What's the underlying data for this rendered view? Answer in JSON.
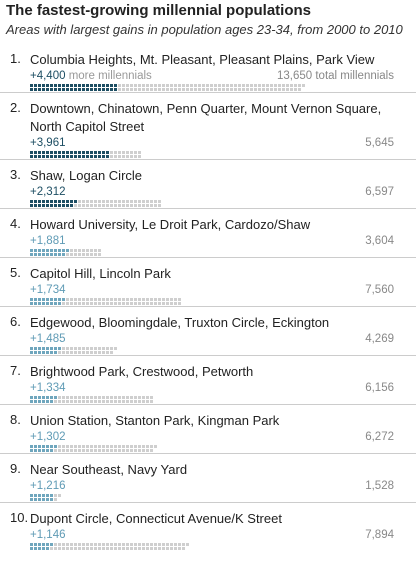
{
  "title": "The fastest-growing millennial populations",
  "subtitle": "Areas with largest gains in population ages 23-34, from 2000 to 2010",
  "first_row_labels": {
    "gain_suffix": "more millennials",
    "total_suffix": "total millennials"
  },
  "colors": {
    "dark_series": "#1d4e63",
    "light_series": "#6fa6bd",
    "remainder": "#cfcfcf",
    "text_dark_gain": "#1d4e63",
    "text_light_gain": "#5f9bb5"
  },
  "chart_data": {
    "type": "bar",
    "description_units": "millennials (ages 23-34)",
    "categories": [
      "Columbia Heights, Mt. Pleasant, Pleasant Plains, Park View",
      "Downtown, Chinatown, Penn Quarter, Mount Vernon Square, North Capitol Street",
      "Shaw, Logan Circle",
      "Howard University, Le Droit Park, Cardozo/Shaw",
      "Capitol Hill, Lincoln Park",
      "Edgewood, Bloomingdale, Truxton Circle, Eckington",
      "Brightwood Park, Crestwood, Petworth",
      "Union Station, Stanton Park, Kingman Park",
      "Near Southeast, Navy Yard",
      "Dupont Circle, Connecticut Avenue/K Street"
    ],
    "ranks": [
      "1.",
      "2.",
      "3.",
      "4.",
      "5.",
      "6.",
      "7.",
      "8.",
      "9.",
      "10."
    ],
    "series": [
      {
        "name": "more millennials",
        "values": [
          4400,
          3961,
          2312,
          1881,
          1734,
          1485,
          1334,
          1302,
          1216,
          1146
        ],
        "labels": [
          "+4,400",
          "+3,961",
          "+2,312",
          "+1,881",
          "+1,734",
          "+1,485",
          "+1,334",
          "+1,302",
          "+1,216",
          "+1,146"
        ]
      },
      {
        "name": "total millennials",
        "values": [
          13650,
          5645,
          6597,
          3604,
          7560,
          4269,
          6156,
          6272,
          1528,
          7894
        ],
        "labels": [
          "13,650",
          "5,645",
          "6,597",
          "3,604",
          "7,560",
          "4,269",
          "6,156",
          "6,272",
          "1,528",
          "7,894"
        ]
      }
    ],
    "dark_rows": 3,
    "people_per_dot": 100
  }
}
